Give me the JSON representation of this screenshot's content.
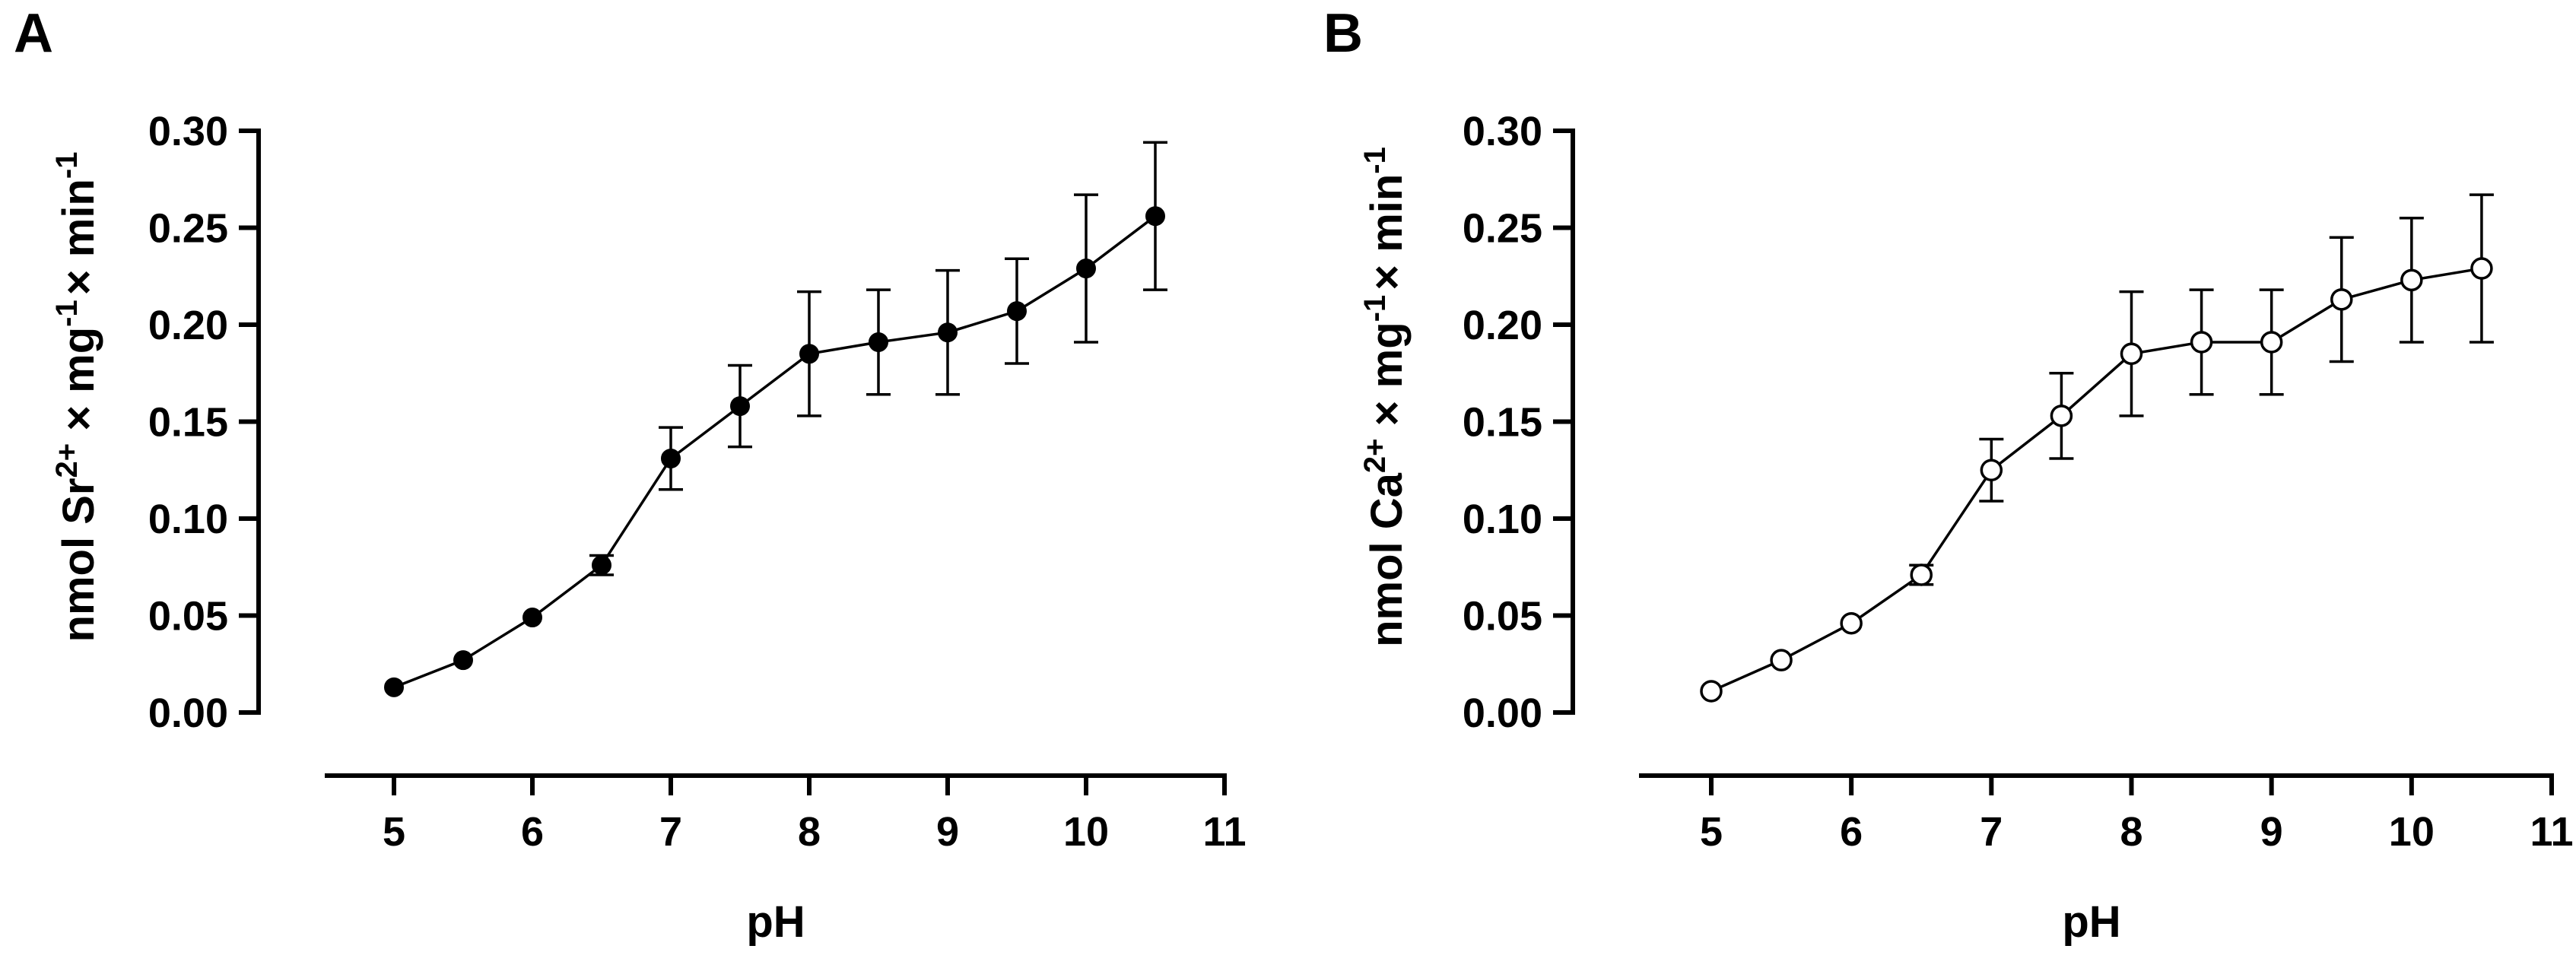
{
  "chart_data": [
    {
      "panel": "A",
      "type": "line",
      "xlabel": "pH",
      "ylabel": {
        "prefix": "nmol Sr",
        "ion_charge": "2+",
        "mid": " × mg",
        "exp1": "-1",
        "end": "× min",
        "exp2": "-1"
      },
      "xlim": [
        4.5,
        11
      ],
      "ylim": [
        0,
        0.3
      ],
      "xticks": [
        5,
        6,
        7,
        8,
        9,
        10,
        11
      ],
      "yticks": [
        "0.00",
        "0.05",
        "0.10",
        "0.15",
        "0.20",
        "0.25",
        "0.30"
      ],
      "marker": "filled-circle",
      "x": [
        5,
        5.5,
        6,
        6.5,
        7,
        7.5,
        8,
        8.5,
        9,
        9.5,
        10,
        10.5
      ],
      "y": [
        0.013,
        0.027,
        0.049,
        0.076,
        0.131,
        0.158,
        0.185,
        0.191,
        0.196,
        0.207,
        0.229,
        0.256
      ],
      "err": [
        0,
        0,
        0,
        0.005,
        0.016,
        0.021,
        0.032,
        0.027,
        0.032,
        0.027,
        0.038,
        0.038
      ]
    },
    {
      "panel": "B",
      "type": "line",
      "xlabel": "pH",
      "ylabel": {
        "prefix": "nmol Ca",
        "ion_charge": "2+",
        "mid": " × mg",
        "exp1": "-1",
        "end": "× min",
        "exp2": "-1"
      },
      "xlim": [
        4.5,
        11
      ],
      "ylim": [
        0,
        0.3
      ],
      "xticks": [
        5,
        6,
        7,
        8,
        9,
        10,
        11
      ],
      "yticks": [
        "0.00",
        "0.05",
        "0.10",
        "0.15",
        "0.20",
        "0.25",
        "0.30"
      ],
      "marker": "open-circle",
      "x": [
        5,
        5.5,
        6,
        6.5,
        7,
        7.5,
        8,
        8.5,
        9,
        9.5,
        10,
        10.5
      ],
      "y": [
        0.011,
        0.027,
        0.046,
        0.071,
        0.125,
        0.153,
        0.185,
        0.191,
        0.191,
        0.213,
        0.223,
        0.229
      ],
      "err": [
        0,
        0,
        0,
        0.005,
        0.016,
        0.022,
        0.032,
        0.027,
        0.027,
        0.032,
        0.032,
        0.038
      ]
    }
  ]
}
